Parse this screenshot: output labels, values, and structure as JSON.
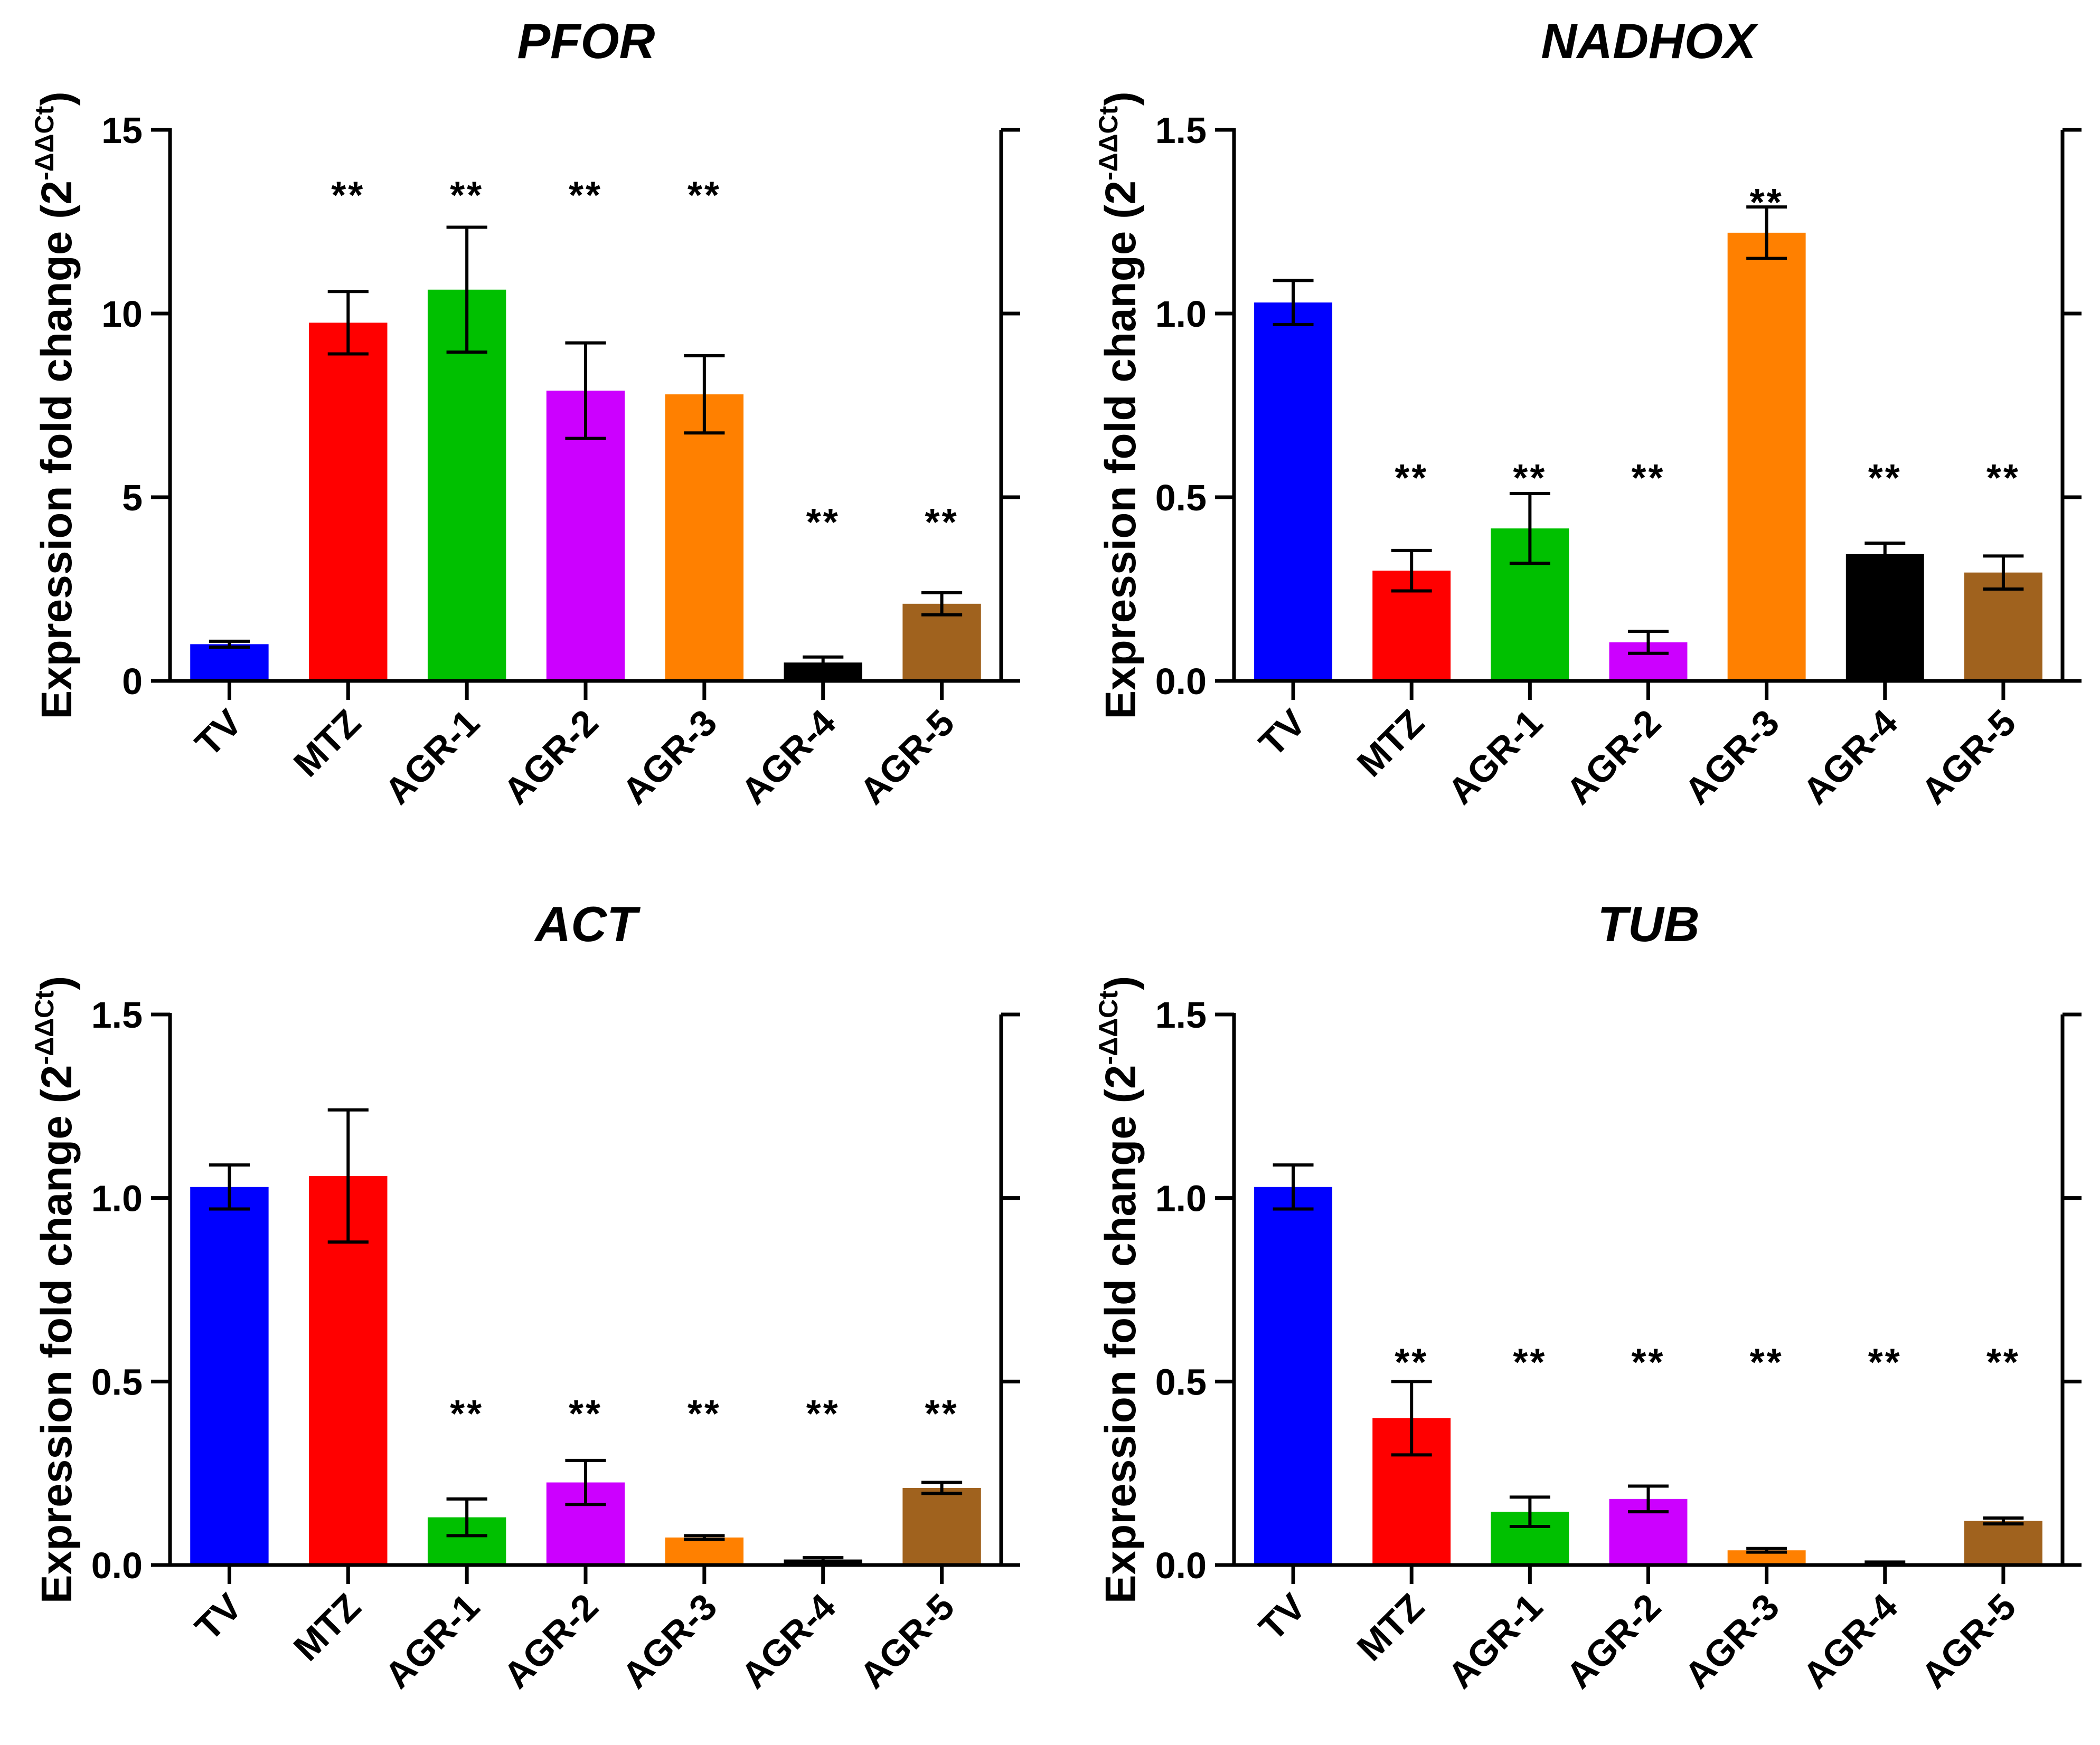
{
  "chart_data": [
    {
      "type": "bar",
      "title": "PFOR",
      "ylabel": "Expression fold change (2",
      "ylabel_sup": "-ΔΔCt",
      "ylabel_close": ")",
      "ylim": [
        0,
        15
      ],
      "yticks": [
        0,
        5,
        10,
        15
      ],
      "ytick_labels": [
        "0",
        "5",
        "10",
        "15"
      ],
      "categories": [
        "TV",
        "MTZ",
        "AGR-1",
        "AGR-2",
        "AGR-3",
        "AGR-4",
        "AGR-5"
      ],
      "values": [
        1.0,
        9.75,
        10.65,
        7.9,
        7.8,
        0.5,
        2.1
      ],
      "errors": [
        0.08,
        0.85,
        1.7,
        1.3,
        1.05,
        0.15,
        0.3
      ],
      "colors": [
        "#0000ff",
        "#ff0000",
        "#00c000",
        "#cc00ff",
        "#ff8000",
        "#000000",
        "#a0621e"
      ],
      "significance": [
        "",
        "**",
        "**",
        "**",
        "**",
        "**",
        "**"
      ],
      "sig_y": [
        null,
        13.3,
        13.3,
        13.3,
        13.3,
        4.4,
        4.4
      ]
    },
    {
      "type": "bar",
      "title": "NADHOX",
      "ylabel": "Expression fold change (2",
      "ylabel_sup": "-ΔΔCt",
      "ylabel_close": ")",
      "ylim": [
        0,
        1.5
      ],
      "yticks": [
        0,
        0.5,
        1.0,
        1.5
      ],
      "ytick_labels": [
        "0.0",
        "0.5",
        "1.0",
        "1.5"
      ],
      "categories": [
        "TV",
        "MTZ",
        "AGR-1",
        "AGR-2",
        "AGR-3",
        "AGR-4",
        "AGR-5"
      ],
      "values": [
        1.03,
        0.3,
        0.415,
        0.105,
        1.22,
        0.345,
        0.295
      ],
      "errors": [
        0.06,
        0.055,
        0.095,
        0.03,
        0.07,
        0.03,
        0.045
      ],
      "colors": [
        "#0000ff",
        "#ff0000",
        "#00c000",
        "#cc00ff",
        "#ff8000",
        "#000000",
        "#a0621e"
      ],
      "significance": [
        "",
        "**",
        "**",
        "**",
        "**",
        "**",
        "**"
      ],
      "sig_y": [
        null,
        0.56,
        0.56,
        0.56,
        1.31,
        0.56,
        0.56
      ]
    },
    {
      "type": "bar",
      "title": "ACT",
      "ylabel": "Expression fold change (2",
      "ylabel_sup": "-ΔΔCt",
      "ylabel_close": ")",
      "ylim": [
        0,
        1.5
      ],
      "yticks": [
        0,
        0.5,
        1.0,
        1.5
      ],
      "ytick_labels": [
        "0.0",
        "0.5",
        "1.0",
        "1.5"
      ],
      "categories": [
        "TV",
        "MTZ",
        "AGR-1",
        "AGR-2",
        "AGR-3",
        "AGR-4",
        "AGR-5"
      ],
      "values": [
        1.03,
        1.06,
        0.13,
        0.225,
        0.075,
        0.015,
        0.21
      ],
      "errors": [
        0.06,
        0.18,
        0.05,
        0.06,
        0.005,
        0.005,
        0.015
      ],
      "colors": [
        "#0000ff",
        "#ff0000",
        "#00c000",
        "#cc00ff",
        "#ff8000",
        "#000000",
        "#a0621e"
      ],
      "significance": [
        "",
        "",
        "**",
        "**",
        "**",
        "**",
        "**"
      ],
      "sig_y": [
        null,
        null,
        0.42,
        0.42,
        0.42,
        0.42,
        0.42
      ]
    },
    {
      "type": "bar",
      "title": "TUB",
      "ylabel": "Expression fold change (2",
      "ylabel_sup": "-ΔΔCt",
      "ylabel_close": ")",
      "ylim": [
        0,
        1.5
      ],
      "yticks": [
        0,
        0.5,
        1.0,
        1.5
      ],
      "ytick_labels": [
        "0.0",
        "0.5",
        "1.0",
        "1.5"
      ],
      "categories": [
        "TV",
        "MTZ",
        "AGR-1",
        "AGR-2",
        "AGR-3",
        "AGR-4",
        "AGR-5"
      ],
      "values": [
        1.03,
        0.4,
        0.145,
        0.18,
        0.04,
        0.005,
        0.12
      ],
      "errors": [
        0.06,
        0.1,
        0.04,
        0.035,
        0.005,
        0.003,
        0.008
      ],
      "colors": [
        "#0000ff",
        "#ff0000",
        "#00c000",
        "#cc00ff",
        "#ff8000",
        "#000000",
        "#a0621e"
      ],
      "significance": [
        "",
        "**",
        "**",
        "**",
        "**",
        "**",
        "**"
      ],
      "sig_y": [
        null,
        0.56,
        0.56,
        0.56,
        0.56,
        0.56,
        0.56
      ]
    }
  ]
}
